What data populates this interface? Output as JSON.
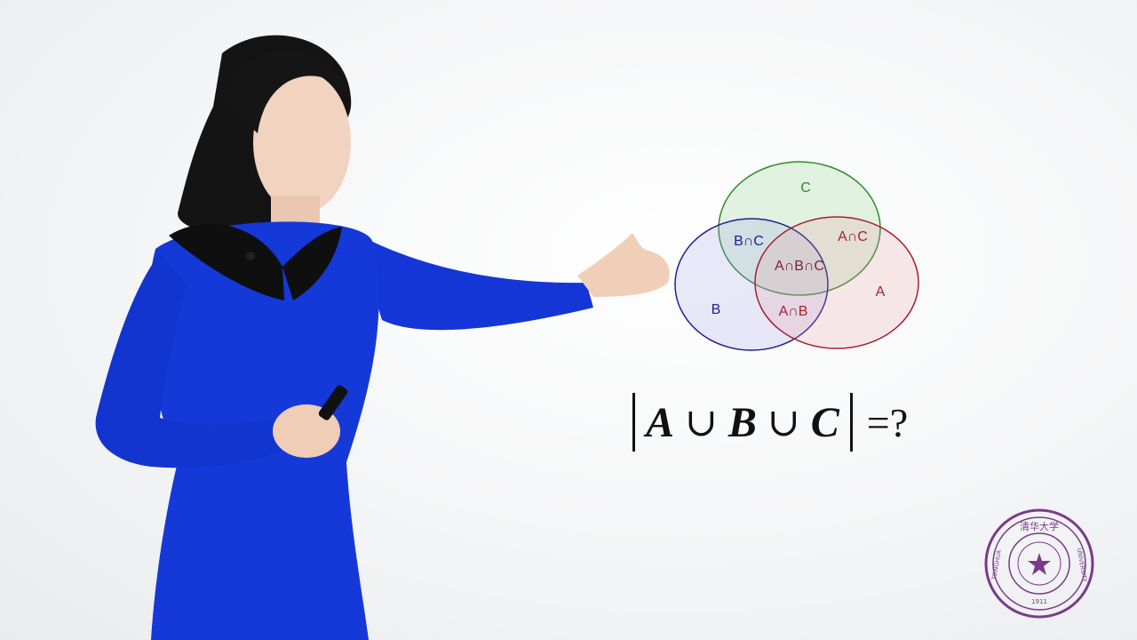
{
  "venn": {
    "labels": {
      "c": "C",
      "b_and_c": "B∩C",
      "a_and_c": "A∩C",
      "a_and_b_and_c": "A∩B∩C",
      "a": "A",
      "b": "B",
      "a_and_b": "A∩B"
    },
    "colors": {
      "circle_a": "#a61f2d",
      "circle_b": "#1e1f8f",
      "circle_c": "#2f8a2f"
    }
  },
  "formula": {
    "var_a": "A",
    "var_b": "B",
    "var_c": "C",
    "union_1": "∪",
    "union_2": "∪",
    "rhs": "=?"
  },
  "logo": {
    "text_top": "清华大学",
    "text_left": "TSINGHUA",
    "text_right": "UNIVERSITY",
    "year": "1911",
    "color": "#7a3a8a"
  }
}
